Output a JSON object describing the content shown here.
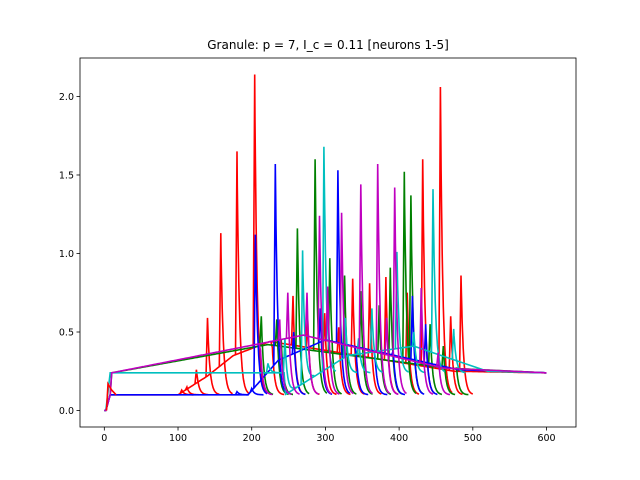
{
  "chart_data": {
    "type": "line",
    "title": "Granule: p = 7, I_c = 0.11 [neurons 1-5]",
    "xlabel": "",
    "ylabel": "",
    "xlim": [
      -33,
      640
    ],
    "ylim": [
      -0.105,
      2.245
    ],
    "xticks": [
      0,
      100,
      200,
      300,
      400,
      500,
      600
    ],
    "yticks": [
      0.0,
      0.5,
      1.0,
      1.5,
      2.0
    ],
    "xtick_labels": [
      "0",
      "100",
      "200",
      "300",
      "400",
      "500",
      "600"
    ],
    "ytick_labels": [
      "0.0",
      "0.5",
      "1.0",
      "1.5",
      "2.0"
    ],
    "grid": false,
    "legend": "none",
    "series": [
      {
        "color": "#ff0000",
        "baseline": 0.1,
        "rise": [
          [
            100,
            0.1
          ],
          [
            140,
            0.22
          ],
          [
            175,
            0.35
          ],
          [
            225,
            0.44
          ]
        ],
        "tail": [
          [
            475,
            0.25
          ],
          [
            600,
            0.24
          ]
        ],
        "spikes": [
          [
            105,
            0.13
          ],
          [
            112,
            0.15
          ],
          [
            125,
            0.26
          ],
          [
            140,
            0.59
          ],
          [
            158,
            1.13
          ],
          [
            180,
            1.65
          ],
          [
            204,
            2.14
          ],
          [
            228,
            0.4
          ],
          [
            256,
            0.73
          ],
          [
            276,
            0.58
          ],
          [
            299,
            0.62
          ],
          [
            318,
            0.53
          ],
          [
            337,
            0.84
          ],
          [
            360,
            0.81
          ],
          [
            382,
            0.85
          ],
          [
            411,
            0.75
          ],
          [
            432,
            1.6
          ],
          [
            456,
            2.06
          ],
          [
            470,
            0.6
          ],
          [
            484,
            0.86
          ]
        ]
      },
      {
        "color": "#008000",
        "baseline": 0.1,
        "rise": [
          [
            10,
            0.24
          ],
          [
            222,
            0.42
          ]
        ],
        "tail": [
          [
            465,
            0.27
          ],
          [
            600,
            0.24
          ]
        ],
        "spikes": [
          [
            213,
            0.6
          ],
          [
            234,
            0.58
          ],
          [
            240,
            0.45
          ],
          [
            262,
            1.16
          ],
          [
            286,
            1.6
          ],
          [
            306,
            0.97
          ],
          [
            326,
            0.86
          ],
          [
            348,
            0.76
          ],
          [
            373,
            0.67
          ],
          [
            388,
            0.91
          ],
          [
            407,
            1.52
          ],
          [
            416,
            1.37
          ],
          [
            442,
            0.55
          ],
          [
            460,
            0.41
          ],
          [
            478,
            0.27
          ]
        ]
      },
      {
        "color": "#0000ff",
        "baseline": 0.1,
        "rise": [
          [
            195,
            0.1
          ],
          [
            236,
            0.32
          ],
          [
            300,
            0.45
          ]
        ],
        "tail": [
          [
            480,
            0.26
          ],
          [
            600,
            0.24
          ]
        ],
        "spikes": [
          [
            180,
            0.12
          ],
          [
            200,
            0.14
          ],
          [
            205,
            1.12
          ],
          [
            232,
            1.57
          ],
          [
            257,
            0.5
          ],
          [
            293,
            0.65
          ],
          [
            317,
            1.53
          ],
          [
            342,
            0.35
          ],
          [
            368,
            0.3
          ],
          [
            392,
            0.38
          ],
          [
            418,
            0.73
          ],
          [
            436,
            0.55
          ]
        ]
      },
      {
        "color": "#00bfbf",
        "baseline": 0.24,
        "rise": [
          [
            245,
            0.1
          ],
          [
            330,
            0.35
          ],
          [
            420,
            0.41
          ]
        ],
        "tail": [
          [
            520,
            0.25
          ],
          [
            600,
            0.24
          ]
        ],
        "spikes": [
          [
            222,
            0.3
          ],
          [
            245,
            0.46
          ],
          [
            269,
            1.02
          ],
          [
            298,
            1.68
          ],
          [
            327,
            0.59
          ],
          [
            345,
            0.46
          ],
          [
            363,
            0.65
          ],
          [
            397,
            1.01
          ],
          [
            420,
            0.5
          ],
          [
            446,
            1.41
          ],
          [
            474,
            0.52
          ]
        ]
      },
      {
        "color": "#bf00bf",
        "baseline": 0.1,
        "rise": [
          [
            10,
            0.24
          ],
          [
            270,
            0.48
          ]
        ],
        "tail": [
          [
            460,
            0.27
          ],
          [
            600,
            0.24
          ]
        ],
        "spikes": [
          [
            212,
            0.38
          ],
          [
            238,
            0.58
          ],
          [
            249,
            0.75
          ],
          [
            275,
            0.75
          ],
          [
            292,
            1.24
          ],
          [
            303,
            0.79
          ],
          [
            322,
            1.26
          ],
          [
            348,
            1.44
          ],
          [
            371,
            1.57
          ],
          [
            383,
            0.59
          ],
          [
            394,
            1.42
          ],
          [
            430,
            0.78
          ],
          [
            453,
            0.37
          ]
        ]
      }
    ]
  }
}
